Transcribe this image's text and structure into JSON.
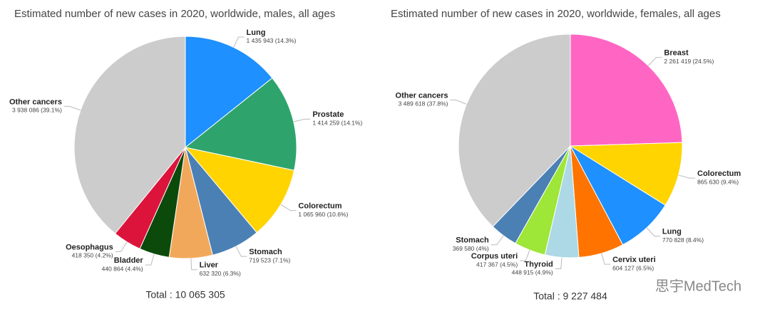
{
  "chart_data": [
    {
      "type": "pie",
      "title": "Estimated number of new cases in 2020, worldwide, males, all ages",
      "categories": [
        "Lung",
        "Prostate",
        "Colorectum",
        "Stomach",
        "Liver",
        "Bladder",
        "Oesophagus",
        "Other cancers"
      ],
      "values": [
        1435943,
        1414259,
        1065960,
        719523,
        632320,
        440864,
        418350,
        3938086
      ],
      "value_labels": [
        "1 435 943 (14.3%)",
        "1 414 259 (14.1%)",
        "1 065 960 (10.6%)",
        "719 523 (7.1%)",
        "632 320 (6.3%)",
        "440 864 (4.4%)",
        "418 350 (4.2%)",
        "3 938 086 (39.1%)"
      ],
      "colors": [
        "#1e90ff",
        "#2ea46c",
        "#ffd400",
        "#4a80b4",
        "#f2a85a",
        "#0b4a0b",
        "#dc143c",
        "#cccccc"
      ],
      "total": "Total : 10 065 305"
    },
    {
      "type": "pie",
      "title": "Estimated number of new cases in 2020, worldwide, females, all ages",
      "categories": [
        "Breast",
        "Colorectum",
        "Lung",
        "Cervix uteri",
        "Thyroid",
        "Corpus uteri",
        "Stomach",
        "Other cancers"
      ],
      "values": [
        2261419,
        865630,
        770828,
        604127,
        448915,
        417367,
        369580,
        3489618
      ],
      "value_labels": [
        "2 261 419 (24.5%)",
        "865 630 (9.4%)",
        "770 828 (8.4%)",
        "604 127 (6.5%)",
        "448 915 (4.9%)",
        "417 367 (4.5%)",
        "369 580 (4%)",
        "3 489 618 (37.8%)"
      ],
      "colors": [
        "#ff66c4",
        "#ffd400",
        "#1e90ff",
        "#ff7400",
        "#add8e6",
        "#9ee637",
        "#4a80b4",
        "#cccccc"
      ],
      "total": "Total : 9 227 484"
    }
  ],
  "watermark": "思宇MedTech"
}
